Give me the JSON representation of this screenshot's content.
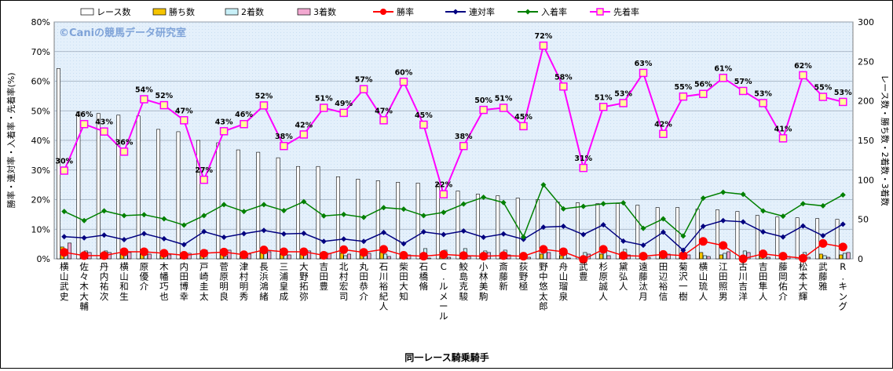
{
  "chart_data": {
    "type": "bar+line",
    "watermark": "©Caniの競馬データ研究室",
    "xlabel": "同一レース騎乗騎手",
    "ylabel_left": "勝率・連対率・入着率・先着率(%)",
    "ylabel_right": "レース数・勝ち数・2着数・3着数",
    "ylim_left": [
      0,
      80
    ],
    "ylim_right": [
      0,
      300
    ],
    "yticks_left": [
      "0%",
      "10%",
      "20%",
      "30%",
      "40%",
      "50%",
      "60%",
      "70%",
      "80%"
    ],
    "yticks_right": [
      "0",
      "50",
      "100",
      "150",
      "200",
      "250",
      "300"
    ],
    "legend_position": "top",
    "categories": [
      "横山 武史",
      "佐々木 大輔",
      "丹内 祐次",
      "横山 和生",
      "原 優介",
      "木幡 巧也",
      "内田 博幸",
      "戸崎 圭太",
      "菅原 明良",
      "津村 明秀",
      "長浜 鴻緒",
      "三浦 皇成",
      "大野 拓弥",
      "吉田 豊",
      "北村 宏司",
      "丸田 恭介",
      "石川 裕紀人",
      "柴田 大知",
      "石橋 脩",
      "C.ルメール",
      "鮫島 克駿",
      "小林 美駒",
      "斎藤 新",
      "荻野 極",
      "野中 悠太郎",
      "舟山 瑠泉",
      "武 豊",
      "杉原 誠人",
      "黛 弘人",
      "遠藤 汰月",
      "田辺 裕信",
      "菊沢 一樹",
      "横山 琉人",
      "江田 照男",
      "古川 吉洋",
      "吉田 隼人",
      "藤岡 佑介",
      "松本 大輝",
      "武藤 雅",
      "R.キング"
    ],
    "series": [
      {
        "name": "レース数",
        "axis": "right",
        "kind": "bar",
        "color": "#ffffff",
        "values": [
          241,
          186,
          184,
          182,
          181,
          164,
          161,
          150,
          147,
          138,
          135,
          128,
          117,
          117,
          104,
          101,
          99,
          97,
          96,
          95,
          86,
          82,
          80,
          77,
          75,
          72,
          71,
          70,
          70,
          68,
          65,
          65,
          63,
          62,
          60,
          55,
          53,
          52,
          51,
          50
        ]
      },
      {
        "name": "勝ち数",
        "axis": "right",
        "kind": "bar",
        "color": "#f5c400",
        "values": [
          15,
          6,
          6,
          10,
          10,
          8,
          5,
          7,
          10,
          5,
          8,
          7,
          7,
          3,
          7,
          6,
          8,
          3,
          1,
          3,
          2,
          2,
          2,
          2,
          6,
          4,
          0,
          6,
          2,
          2,
          2,
          6,
          8,
          5,
          0,
          4,
          1,
          1,
          6,
          5
        ]
      },
      {
        "name": "2着数",
        "axis": "right",
        "kind": "bar",
        "color": "#c8f0f8",
        "values": [
          12,
          10,
          10,
          4,
          12,
          10,
          3,
          11,
          3,
          7,
          7,
          9,
          6,
          8,
          4,
          4,
          6,
          5,
          13,
          11,
          13,
          10,
          11,
          4,
          9,
          12,
          8,
          9,
          12,
          6,
          4,
          2,
          4,
          7,
          10,
          3,
          5,
          8,
          4,
          7
        ]
      },
      {
        "name": "3着数",
        "axis": "right",
        "kind": "bar",
        "color": "#f2a8d0",
        "values": [
          20,
          8,
          8,
          8,
          6,
          5,
          7,
          0,
          11,
          6,
          9,
          5,
          10,
          7,
          6,
          7,
          3,
          5,
          1,
          2,
          3,
          8,
          5,
          2,
          8,
          1,
          6,
          4,
          5,
          2,
          6,
          5,
          3,
          9,
          8,
          2,
          3,
          2,
          2,
          8
        ]
      },
      {
        "name": "勝率",
        "axis": "left",
        "kind": "line",
        "color": "#ff0000",
        "marker": "circle",
        "values": [
          2.2,
          1.1,
          1.1,
          2.4,
          2.4,
          1.9,
          1.2,
          1.9,
          2.3,
          1.4,
          3.0,
          2.4,
          2.4,
          1.2,
          3.1,
          2.2,
          3.2,
          1.2,
          0.9,
          1.5,
          1.1,
          0.9,
          1.1,
          0.9,
          3.2,
          2.4,
          -0.2,
          3.2,
          1.1,
          0.9,
          1.5,
          1.1,
          5.9,
          4.5,
          0.0,
          1.7,
          0.9,
          0.2,
          5.2,
          4.0
        ]
      },
      {
        "name": "連対率",
        "axis": "left",
        "kind": "line",
        "color": "#000080",
        "marker": "diamond",
        "values": [
          7.5,
          7.1,
          8.0,
          6.5,
          8.5,
          6.8,
          4.8,
          9.2,
          7.3,
          8.5,
          9.6,
          8.4,
          8.6,
          5.9,
          6.7,
          5.9,
          8.9,
          5.1,
          9.1,
          8.2,
          9.4,
          7.3,
          8.4,
          6.6,
          10.7,
          11.0,
          8.2,
          11.5,
          6.0,
          4.6,
          9.0,
          2.9,
          11.0,
          12.9,
          12.5,
          9.1,
          7.4,
          11.1,
          7.8,
          11.7
        ]
      },
      {
        "name": "入着率",
        "axis": "left",
        "kind": "line",
        "color": "#008000",
        "marker": "diamond",
        "values": [
          16.0,
          12.9,
          16.2,
          14.6,
          14.9,
          13.5,
          11.4,
          14.6,
          18.3,
          16.0,
          18.3,
          16.3,
          19.3,
          14.5,
          15.0,
          14.0,
          17.3,
          16.8,
          14.6,
          15.7,
          18.5,
          20.8,
          19.0,
          7.4,
          25.0,
          16.9,
          17.7,
          18.6,
          18.9,
          10.3,
          13.5,
          7.7,
          20.5,
          22.5,
          21.8,
          16.2,
          14.4,
          18.6,
          17.9,
          21.6
        ]
      },
      {
        "name": "先着率",
        "axis": "left",
        "kind": "line",
        "color": "#ff00ff",
        "marker": "square",
        "values": [
          29.8,
          45.5,
          43.0,
          36.2,
          53.9,
          51.9,
          46.8,
          26.7,
          43.1,
          45.5,
          51.8,
          38.1,
          42.0,
          51.0,
          49.3,
          57.3,
          46.8,
          59.8,
          45.3,
          21.8,
          38.1,
          50.3,
          51.0,
          44.8,
          72.0,
          58.2,
          30.7,
          51.3,
          52.6,
          62.8,
          42.2,
          54.8,
          55.7,
          61.1,
          56.7,
          52.6,
          40.7,
          62.0,
          54.7,
          53.0
        ]
      }
    ],
    "data_labels": [
      "30%",
      "46%",
      "43%",
      "36%",
      "54%",
      "52%",
      "47%",
      "27%",
      "43%",
      "46%",
      "52%",
      "38%",
      "42%",
      "51%",
      "49%",
      "57%",
      "47%",
      "60%",
      "45%",
      "22%",
      "38%",
      "50%",
      "51%",
      "45%",
      "72%",
      "58%",
      "31%",
      "51%",
      "53%",
      "63%",
      "42%",
      "55%",
      "56%",
      "61%",
      "57%",
      "53%",
      "41%",
      "62%",
      "55%",
      "53%"
    ]
  }
}
